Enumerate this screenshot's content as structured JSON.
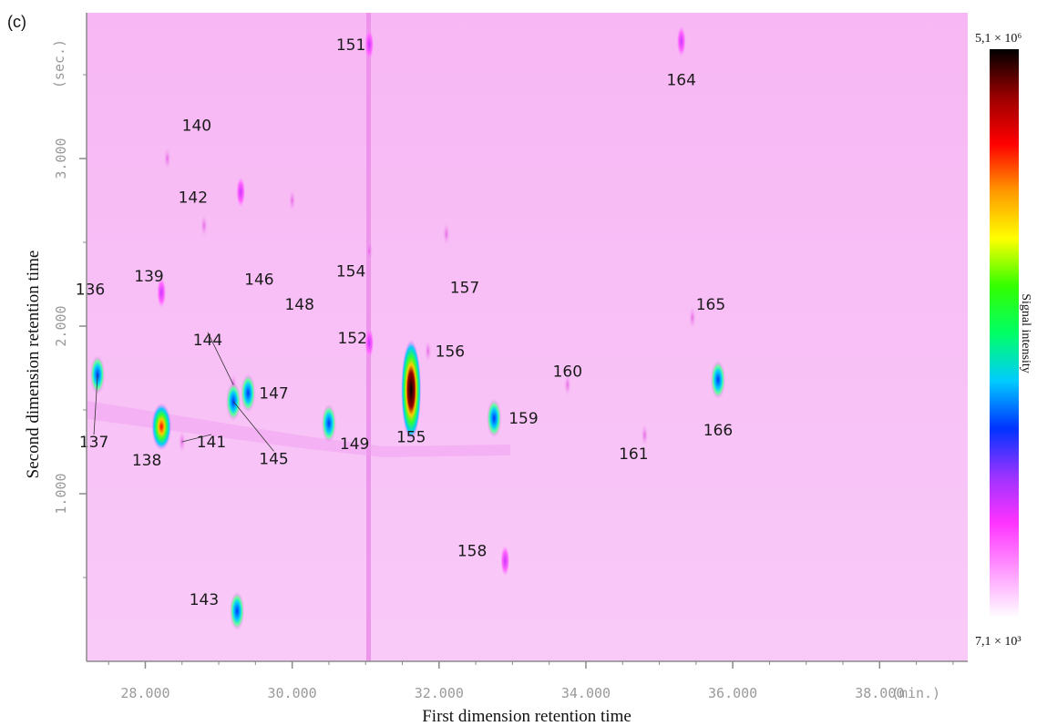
{
  "panel_label": "(c)",
  "chart_data": {
    "type": "heatmap",
    "xlabel": "First dimension retention time",
    "ylabel": "Second dimension retention time",
    "x_unit": "(min.)",
    "y_unit": "(sec.)",
    "xlim": [
      27.2,
      39.2
    ],
    "ylim": [
      0.0,
      3.87
    ],
    "x_ticks": [
      {
        "value": 28,
        "label": "28.000"
      },
      {
        "value": 30,
        "label": "30.000"
      },
      {
        "value": 32,
        "label": "32.000"
      },
      {
        "value": 34,
        "label": "34.000"
      },
      {
        "value": 36,
        "label": "36.000"
      },
      {
        "value": 38,
        "label": "38.000"
      }
    ],
    "y_ticks": [
      {
        "value": 1,
        "label": "1.000"
      },
      {
        "value": 2,
        "label": "2.000"
      },
      {
        "value": 3,
        "label": "3.000"
      }
    ],
    "colorbar": {
      "title": "Signal intensity",
      "max_label": "5,1 × 10⁶",
      "min_label": "7,1 × 10³",
      "stops": [
        "#ffffff",
        "#ff99ff",
        "#ff33ff",
        "#9933ff",
        "#0033ff",
        "#00ccff",
        "#00ff66",
        "#33ff00",
        "#ffff00",
        "#ff9900",
        "#ff0000",
        "#990000",
        "#000000"
      ]
    },
    "peaks": [
      {
        "label": "136",
        "x": 27.35,
        "y": 1.71,
        "intensity": 0.45,
        "label_x": 27.25,
        "label_y": 2.22
      },
      {
        "label": "137",
        "x": 27.35,
        "y": 1.71,
        "intensity": 0.45,
        "label_x": 27.3,
        "label_y": 1.31
      },
      {
        "label": "138",
        "x": 28.22,
        "y": 1.4,
        "intensity": 0.8,
        "label_x": 28.02,
        "label_y": 1.2
      },
      {
        "label": "139",
        "x": 28.22,
        "y": 2.2,
        "intensity": 0.15,
        "label_x": 28.05,
        "label_y": 2.3
      },
      {
        "label": "140",
        "x": 28.3,
        "y": 3.0,
        "intensity": 0.05,
        "label_x": 28.7,
        "label_y": 3.2
      },
      {
        "label": "141",
        "x": 28.5,
        "y": 1.31,
        "intensity": 0.05,
        "label_x": 28.9,
        "label_y": 1.31
      },
      {
        "label": "142",
        "x": 28.8,
        "y": 2.6,
        "intensity": 0.1,
        "label_x": 28.65,
        "label_y": 2.77
      },
      {
        "label": "143",
        "x": 29.25,
        "y": 0.3,
        "intensity": 0.4,
        "label_x": 28.8,
        "label_y": 0.37
      },
      {
        "label": "144",
        "x": 29.2,
        "y": 1.65,
        "intensity": 0.05,
        "label_x": 28.85,
        "label_y": 1.92
      },
      {
        "label": "145",
        "x": 29.2,
        "y": 1.55,
        "intensity": 0.4,
        "label_x": 29.75,
        "label_y": 1.21
      },
      {
        "label": "146",
        "x": 29.3,
        "y": 2.8,
        "intensity": 0.15,
        "label_x": 29.55,
        "label_y": 2.28
      },
      {
        "label": "147",
        "x": 29.4,
        "y": 1.6,
        "intensity": 0.4,
        "label_x": 29.75,
        "label_y": 1.6
      },
      {
        "label": "148",
        "x": 30.0,
        "y": 2.75,
        "intensity": 0.1,
        "label_x": 30.1,
        "label_y": 2.13
      },
      {
        "label": "149",
        "x": 30.5,
        "y": 1.42,
        "intensity": 0.45,
        "label_x": 30.85,
        "label_y": 1.3
      },
      {
        "label": "151",
        "x": 31.05,
        "y": 3.68,
        "intensity": 0.2,
        "label_x": 30.8,
        "label_y": 3.68
      },
      {
        "label": "152",
        "x": 31.05,
        "y": 1.9,
        "intensity": 0.15,
        "label_x": 30.82,
        "label_y": 1.93
      },
      {
        "label": "154",
        "x": 31.05,
        "y": 2.45,
        "intensity": 0.1,
        "label_x": 30.8,
        "label_y": 2.33
      },
      {
        "label": "155",
        "x": 31.62,
        "y": 1.62,
        "intensity": 1.0,
        "label_x": 31.62,
        "label_y": 1.34
      },
      {
        "label": "156",
        "x": 31.85,
        "y": 1.85,
        "intensity": 0.1,
        "label_x": 32.15,
        "label_y": 1.85
      },
      {
        "label": "157",
        "x": 32.1,
        "y": 2.55,
        "intensity": 0.05,
        "label_x": 32.35,
        "label_y": 2.23
      },
      {
        "label": "158",
        "x": 32.9,
        "y": 0.6,
        "intensity": 0.15,
        "label_x": 32.45,
        "label_y": 0.66
      },
      {
        "label": "159",
        "x": 32.75,
        "y": 1.45,
        "intensity": 0.5,
        "label_x": 33.15,
        "label_y": 1.45
      },
      {
        "label": "160",
        "x": 33.75,
        "y": 1.65,
        "intensity": 0.05,
        "label_x": 33.75,
        "label_y": 1.73
      },
      {
        "label": "161",
        "x": 34.8,
        "y": 1.35,
        "intensity": 0.05,
        "label_x": 34.65,
        "label_y": 1.24
      },
      {
        "label": "164",
        "x": 35.3,
        "y": 3.7,
        "intensity": 0.15,
        "label_x": 35.3,
        "label_y": 3.47
      },
      {
        "label": "165",
        "x": 35.45,
        "y": 2.05,
        "intensity": 0.1,
        "label_x": 35.7,
        "label_y": 2.13
      },
      {
        "label": "166",
        "x": 35.8,
        "y": 1.68,
        "intensity": 0.5,
        "label_x": 35.8,
        "label_y": 1.38
      }
    ]
  }
}
